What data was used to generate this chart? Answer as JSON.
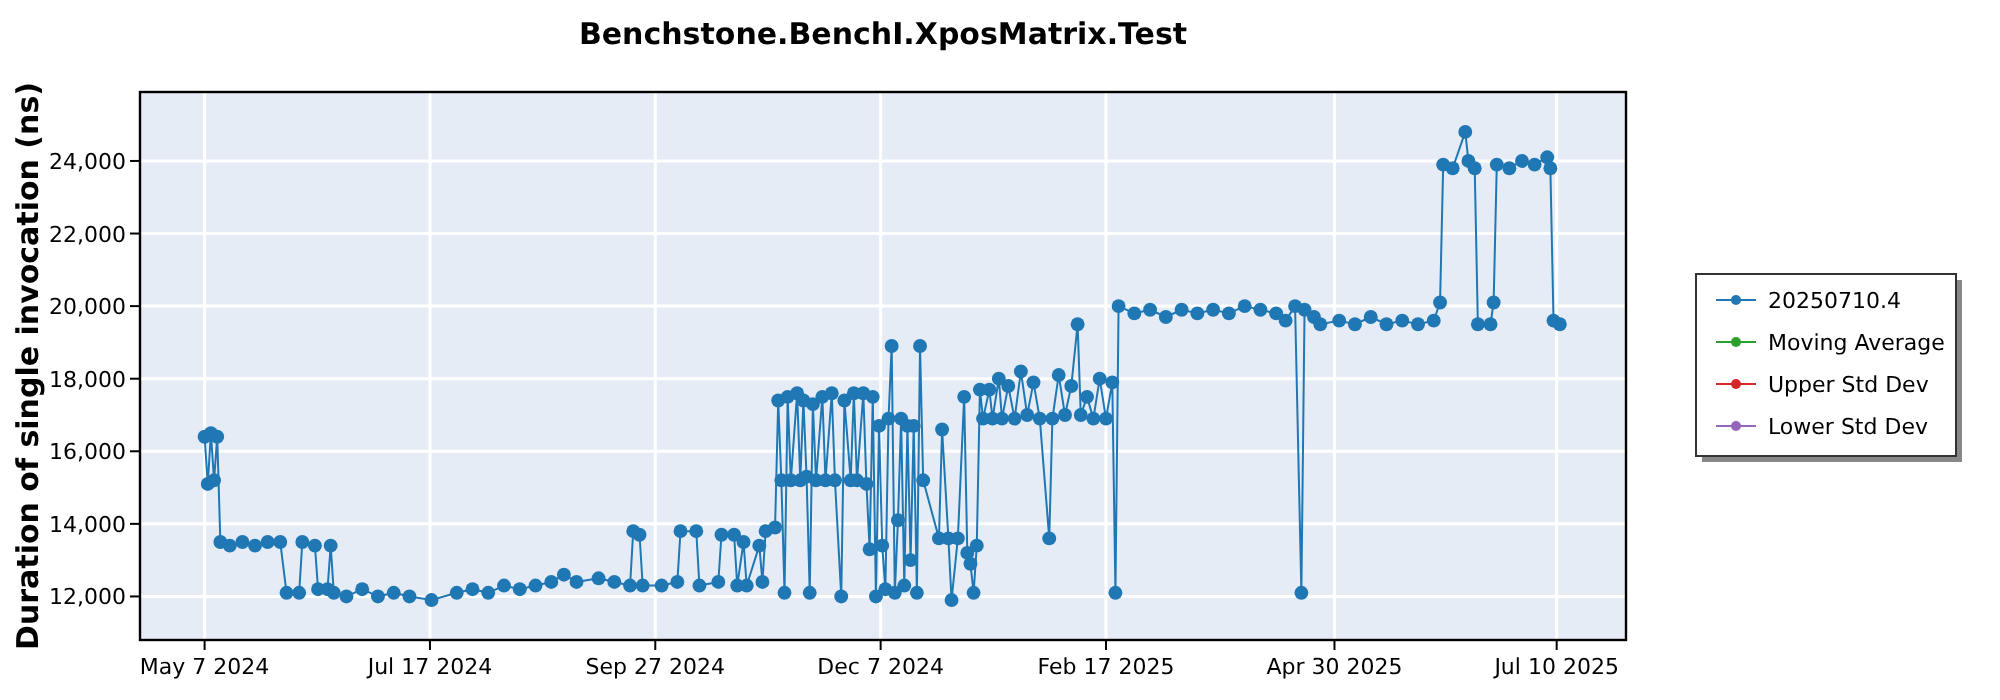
{
  "chart_data": {
    "type": "line",
    "title": "Benchstone.BenchI.XposMatrix.Test",
    "ylabel": "Duration of single invocation (ns)",
    "xlim": [
      "2024-04-16T12:00",
      "2025-08-01T00:00"
    ],
    "xticks": [
      {
        "value": "2024-05-07T00:00",
        "label": "May 7 2024"
      },
      {
        "value": "2024-07-17T12:00",
        "label": "Jul 17 2024"
      },
      {
        "value": "2024-09-27T00:00",
        "label": "Sep 27 2024"
      },
      {
        "value": "2024-12-07T12:00",
        "label": "Dec 7 2024"
      },
      {
        "value": "2025-02-17T00:00",
        "label": "Feb 17 2025"
      },
      {
        "value": "2025-04-30T12:00",
        "label": "Apr 30 2025"
      },
      {
        "value": "2025-07-10T00:00",
        "label": "Jul 10 2025"
      }
    ],
    "ylim": [
      10800,
      25900
    ],
    "yticks": [
      {
        "value": 12000,
        "label": "12,000"
      },
      {
        "value": 14000,
        "label": "14,000"
      },
      {
        "value": 16000,
        "label": "16,000"
      },
      {
        "value": 18000,
        "label": "18,000"
      },
      {
        "value": 20000,
        "label": "20,000"
      },
      {
        "value": 22000,
        "label": "22,000"
      },
      {
        "value": 24000,
        "label": "24,000"
      }
    ],
    "grid": true,
    "legend": "right",
    "marker": "circle",
    "line_style": "solid",
    "series": [
      {
        "name": "20250710.4",
        "color": "#1f77b4",
        "x": [
          "2024-05-07",
          "2024-05-08",
          "2024-05-09",
          "2024-05-10",
          "2024-05-11",
          "2024-05-12",
          "2024-05-15",
          "2024-05-19",
          "2024-05-23",
          "2024-05-27",
          "2024-05-31",
          "2024-06-02",
          "2024-06-06",
          "2024-06-07",
          "2024-06-11",
          "2024-06-12",
          "2024-06-15",
          "2024-06-16",
          "2024-06-17",
          "2024-06-21",
          "2024-06-26",
          "2024-07-01",
          "2024-07-06",
          "2024-07-11",
          "2024-07-18",
          "2024-07-26",
          "2024-07-31",
          "2024-08-05",
          "2024-08-10",
          "2024-08-15",
          "2024-08-20",
          "2024-08-25",
          "2024-08-29",
          "2024-09-02",
          "2024-09-09",
          "2024-09-14",
          "2024-09-19",
          "2024-09-20",
          "2024-09-22",
          "2024-09-23",
          "2024-09-29",
          "2024-10-04",
          "2024-10-05",
          "2024-10-10",
          "2024-10-11",
          "2024-10-17",
          "2024-10-18",
          "2024-10-22",
          "2024-10-23",
          "2024-10-25",
          "2024-10-26",
          "2024-10-30",
          "2024-10-31",
          "2024-11-01",
          "2024-11-04",
          "2024-11-05",
          "2024-11-06",
          "2024-11-07",
          "2024-11-08",
          "2024-11-09",
          "2024-11-11",
          "2024-11-12",
          "2024-11-13",
          "2024-11-14",
          "2024-11-15",
          "2024-11-16",
          "2024-11-17",
          "2024-11-19",
          "2024-11-20",
          "2024-11-22",
          "2024-11-23",
          "2024-11-25",
          "2024-11-26",
          "2024-11-28",
          "2024-11-29",
          "2024-11-30",
          "2024-12-02",
          "2024-12-03",
          "2024-12-04",
          "2024-12-05",
          "2024-12-06",
          "2024-12-07",
          "2024-12-08",
          "2024-12-09",
          "2024-12-10",
          "2024-12-11",
          "2024-12-12",
          "2024-12-13",
          "2024-12-14",
          "2024-12-15",
          "2024-12-16",
          "2024-12-17",
          "2024-12-18",
          "2024-12-19",
          "2024-12-20",
          "2024-12-21",
          "2024-12-26",
          "2024-12-27",
          "2024-12-29",
          "2024-12-30",
          "2025-01-01",
          "2025-01-03",
          "2025-01-04",
          "2025-01-05",
          "2025-01-06",
          "2025-01-07",
          "2025-01-08",
          "2025-01-09",
          "2025-01-11",
          "2025-01-12",
          "2025-01-14",
          "2025-01-15",
          "2025-01-17",
          "2025-01-19",
          "2025-01-21",
          "2025-01-23",
          "2025-01-25",
          "2025-01-27",
          "2025-01-30",
          "2025-01-31",
          "2025-02-02",
          "2025-02-04",
          "2025-02-06",
          "2025-02-08",
          "2025-02-09",
          "2025-02-11",
          "2025-02-13",
          "2025-02-15",
          "2025-02-17",
          "2025-02-19",
          "2025-02-20",
          "2025-02-21",
          "2025-02-26",
          "2025-03-03",
          "2025-03-08",
          "2025-03-13",
          "2025-03-18",
          "2025-03-23",
          "2025-03-28",
          "2025-04-02",
          "2025-04-07",
          "2025-04-12",
          "2025-04-15",
          "2025-04-18",
          "2025-04-20",
          "2025-04-21",
          "2025-04-24",
          "2025-04-26",
          "2025-05-02",
          "2025-05-07",
          "2025-05-12",
          "2025-05-17",
          "2025-05-22",
          "2025-05-27",
          "2025-06-01",
          "2025-06-03",
          "2025-06-04",
          "2025-06-07",
          "2025-06-11",
          "2025-06-12",
          "2025-06-14",
          "2025-06-15",
          "2025-06-19",
          "2025-06-20",
          "2025-06-21",
          "2025-06-25",
          "2025-06-29",
          "2025-07-03",
          "2025-07-07",
          "2025-07-08",
          "2025-07-09",
          "2025-07-11"
        ],
        "values": [
          16400,
          15100,
          16500,
          15200,
          16400,
          13500,
          13400,
          13500,
          13400,
          13500,
          13500,
          12100,
          12100,
          13500,
          13400,
          12200,
          12200,
          13400,
          12100,
          12000,
          12200,
          12000,
          12100,
          12000,
          11900,
          12100,
          12200,
          12100,
          12300,
          12200,
          12300,
          12400,
          12600,
          12400,
          12500,
          12400,
          12300,
          13800,
          13700,
          12300,
          12300,
          12400,
          13800,
          13800,
          12300,
          12400,
          13700,
          13700,
          12300,
          13500,
          12300,
          13400,
          12400,
          13800,
          13900,
          17400,
          15200,
          12100,
          17500,
          15200,
          17600,
          15200,
          17400,
          15300,
          12100,
          17300,
          15200,
          17500,
          15200,
          17600,
          15200,
          12000,
          17400,
          15200,
          17600,
          15200,
          17600,
          15100,
          13300,
          17500,
          12000,
          16700,
          13400,
          12200,
          16900,
          18900,
          12100,
          14100,
          16900,
          12300,
          16700,
          13000,
          16700,
          12100,
          18900,
          15200,
          13600,
          16600,
          13600,
          11900,
          13600,
          17500,
          13200,
          12900,
          12100,
          13400,
          17700,
          16900,
          17700,
          16900,
          18000,
          16900,
          17800,
          16900,
          18200,
          17000,
          17900,
          16900,
          13600,
          16900,
          18100,
          17000,
          17800,
          19500,
          17000,
          17500,
          16900,
          18000,
          16900,
          17900,
          12100,
          20000,
          19800,
          19900,
          19700,
          19900,
          19800,
          19900,
          19800,
          20000,
          19900,
          19800,
          19600,
          20000,
          12100,
          19900,
          19700,
          19500,
          19600,
          19500,
          19700,
          19500,
          19600,
          19500,
          19600,
          20100,
          23900,
          23800,
          24800,
          24000,
          23800,
          19500,
          19500,
          20100,
          23900,
          23800,
          24000,
          23900,
          24100,
          23800,
          19600,
          19500
        ]
      },
      {
        "name": "Moving Average",
        "color": "#2ca02c"
      },
      {
        "name": "Upper Std Dev",
        "color": "#d62728"
      },
      {
        "name": "Lower Std Dev",
        "color": "#9467bd"
      }
    ]
  }
}
